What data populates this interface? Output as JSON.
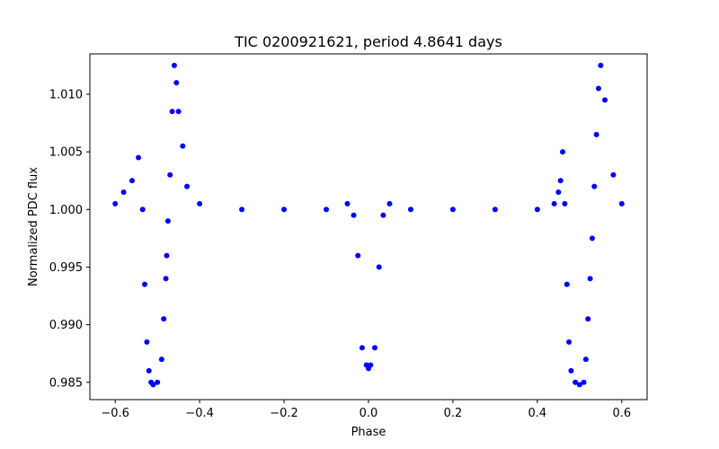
{
  "chart_data": {
    "type": "scatter",
    "title": "TIC 0200921621, period 4.8641 days",
    "xlabel": "Phase",
    "ylabel": "Normalized PDC flux",
    "xlim": [
      -0.66,
      0.66
    ],
    "ylim": [
      0.9835,
      1.0135
    ],
    "grid": false,
    "x_ticks": [
      -0.6,
      -0.4,
      -0.2,
      0.0,
      0.2,
      0.4,
      0.6
    ],
    "x_tick_labels": [
      "−0.6",
      "−0.4",
      "−0.2",
      "0.0",
      "0.2",
      "0.4",
      "0.6"
    ],
    "y_ticks": [
      0.985,
      0.99,
      0.995,
      1.0,
      1.005,
      1.01
    ],
    "y_tick_labels": [
      "0.985",
      "0.990",
      "0.995",
      "1.000",
      "1.005",
      "1.010"
    ],
    "marker_color": "#0000ff",
    "series": [
      {
        "name": "Normalized PDC flux",
        "x": [
          -0.6,
          -0.58,
          -0.56,
          -0.545,
          -0.535,
          -0.53,
          -0.525,
          -0.52,
          -0.515,
          -0.51,
          -0.5,
          -0.49,
          -0.485,
          -0.48,
          -0.478,
          -0.475,
          -0.47,
          -0.465,
          -0.46,
          -0.455,
          -0.45,
          -0.44,
          -0.43,
          -0.4,
          -0.3,
          -0.2,
          -0.1,
          -0.05,
          -0.035,
          -0.025,
          -0.015,
          -0.005,
          0.0,
          0.005,
          0.015,
          0.025,
          0.035,
          0.05,
          0.1,
          0.2,
          0.3,
          0.4,
          0.44,
          0.45,
          0.455,
          0.46,
          0.465,
          0.47,
          0.475,
          0.48,
          0.49,
          0.5,
          0.51,
          0.515,
          0.52,
          0.525,
          0.53,
          0.535,
          0.54,
          0.545,
          0.55,
          0.56,
          0.58,
          0.6
        ],
        "y": [
          1.0005,
          1.0015,
          1.0025,
          1.0045,
          1.0,
          0.9935,
          0.9885,
          0.986,
          0.985,
          0.9848,
          0.985,
          0.987,
          0.9905,
          0.994,
          0.996,
          0.999,
          1.003,
          1.0085,
          1.0125,
          1.011,
          1.0085,
          1.0055,
          1.002,
          1.0005,
          1.0,
          1.0,
          1.0,
          1.0005,
          0.9995,
          0.996,
          0.988,
          0.9865,
          0.9862,
          0.9865,
          0.988,
          0.995,
          0.9995,
          1.0005,
          1.0,
          1.0,
          1.0,
          1.0,
          1.0005,
          1.0015,
          1.0025,
          1.005,
          1.0005,
          0.9935,
          0.9885,
          0.986,
          0.985,
          0.9848,
          0.985,
          0.987,
          0.9905,
          0.994,
          0.9975,
          1.002,
          1.0065,
          1.0105,
          1.0125,
          1.0095,
          1.003,
          1.0005
        ]
      }
    ]
  }
}
